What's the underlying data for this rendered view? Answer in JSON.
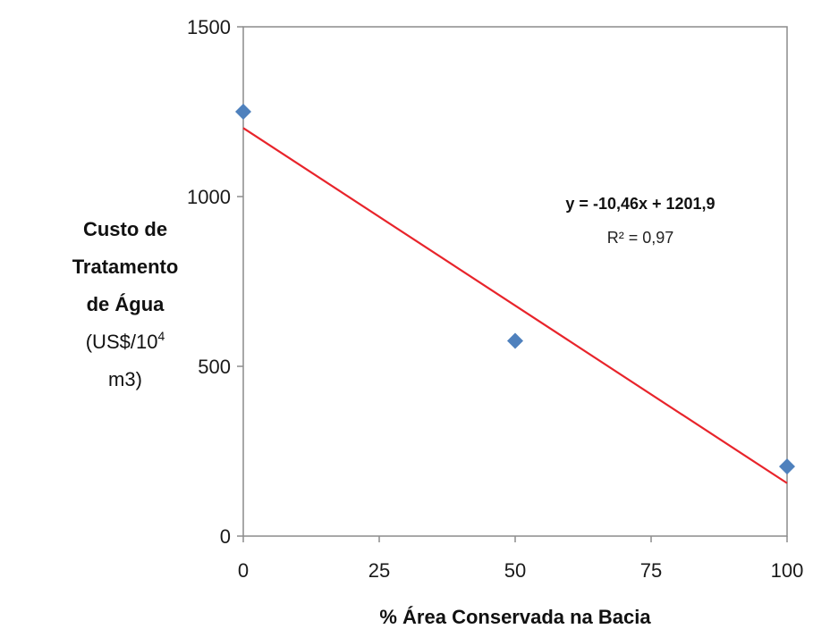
{
  "chart_data": {
    "type": "scatter",
    "title": "",
    "xlabel": "% Área Conservada na Bacia",
    "ylabel_lines": [
      "Custo de",
      "Tratamento",
      "de Água",
      "(US$/10",
      "m3)"
    ],
    "ylabel_superscript": "4",
    "xlim": [
      0,
      100
    ],
    "ylim": [
      0,
      1500
    ],
    "x_ticks": [
      0,
      25,
      50,
      75,
      100
    ],
    "y_ticks": [
      0,
      500,
      1000,
      1500
    ],
    "grid": false,
    "series": [
      {
        "x": [
          0,
          50,
          100
        ],
        "y": [
          1250,
          575,
          205
        ],
        "marker": "diamond",
        "color": "#4f81bd"
      }
    ],
    "trendline": {
      "type": "linear",
      "slope": -10.46,
      "intercept": 1201.9,
      "x_range": [
        0,
        100
      ],
      "color": "#e8242b",
      "equation_label": "y = -10,46x + 1201,9",
      "r2_label": "R² = 0,97"
    }
  }
}
